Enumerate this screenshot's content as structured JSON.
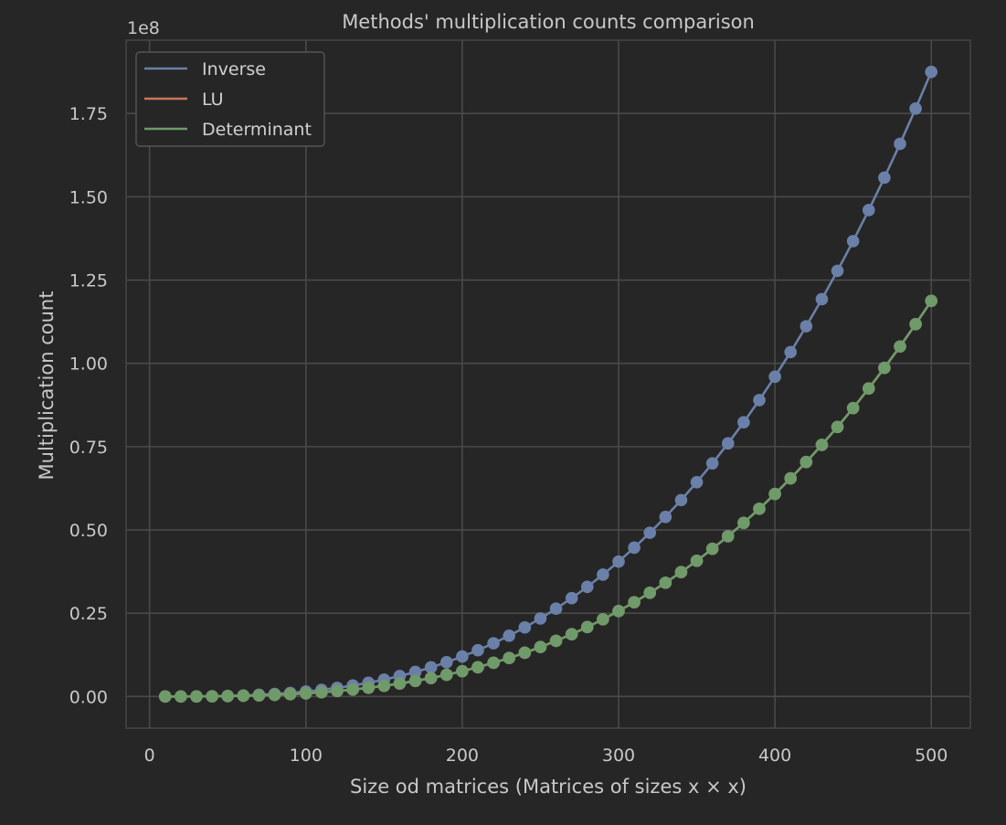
{
  "chart_data": {
    "type": "line",
    "title": "Methods' multiplication counts comparison",
    "xlabel": "Size od matrices (Matrices of sizes x × x)",
    "ylabel": "Multiplication count",
    "y_offset_label": "1e8",
    "y_scale_factor": 100000000,
    "xlim": [
      -15,
      525
    ],
    "ylim": [
      -9500000,
      197000000
    ],
    "x_ticks": [
      0,
      100,
      200,
      300,
      400,
      500
    ],
    "y_ticks": [
      0,
      25000000,
      50000000,
      75000000,
      100000000,
      125000000,
      150000000,
      175000000
    ],
    "y_tick_labels": [
      "0.00",
      "0.25",
      "0.50",
      "0.75",
      "1.00",
      "1.25",
      "1.50",
      "1.75"
    ],
    "grid": true,
    "legend_position": "top-left",
    "x": [
      10,
      20,
      30,
      40,
      50,
      60,
      70,
      80,
      90,
      100,
      110,
      120,
      130,
      140,
      150,
      160,
      170,
      180,
      190,
      200,
      210,
      220,
      230,
      240,
      250,
      260,
      270,
      280,
      290,
      300,
      310,
      320,
      330,
      340,
      350,
      360,
      370,
      380,
      390,
      400,
      410,
      420,
      430,
      440,
      450,
      460,
      470,
      480,
      490,
      500
    ],
    "series": [
      {
        "name": "Inverse",
        "color": "#6a80a8",
        "marker_color": "#6a80a8",
        "values": [
          1500,
          12000,
          40500,
          96000,
          187500,
          324000,
          514500,
          768000,
          1093500,
          1500000,
          1996500,
          2592000,
          3295500,
          4116000,
          5062500,
          6144000,
          7369500,
          8748000,
          10288500,
          12000000,
          13891500,
          15972000,
          18250500,
          20736000,
          23437500,
          26364000,
          29524500,
          32928000,
          36583500,
          40500000,
          44686500,
          49152000,
          53905500,
          58956000,
          64312500,
          69984000,
          75979500,
          82308000,
          88978500,
          96000000,
          103381500,
          111132000,
          119260500,
          127776000,
          136687500,
          146004000,
          155734500,
          165888000,
          176473500,
          187500000
        ]
      },
      {
        "name": "LU",
        "color": "#c8775a",
        "marker_color": "#c8775a",
        "values": [
          950,
          7600,
          25650,
          60800,
          118750,
          205200,
          325850,
          486400,
          692550,
          950000,
          1264450,
          1641600,
          2087150,
          2606800,
          3206250,
          3891200,
          4667350,
          5540400,
          6516050,
          7600000,
          8797950,
          10115600,
          11558650,
          13132800,
          14843750,
          16697200,
          18698850,
          20854400,
          23169550,
          25650000,
          28301450,
          31129600,
          34140150,
          37338800,
          40731250,
          44323200,
          48120350,
          52128400,
          56353050,
          60800000,
          65474950,
          70383600,
          75531650,
          80924800,
          86568750,
          92469200,
          98631850,
          105062400,
          111766550,
          118750000
        ]
      },
      {
        "name": "Determinant",
        "color": "#6f9a6a",
        "marker_color": "#6f9a6a",
        "values": [
          950,
          7600,
          25650,
          60800,
          118750,
          205200,
          325850,
          486400,
          692550,
          950000,
          1264450,
          1641600,
          2087150,
          2606800,
          3206250,
          3891200,
          4667350,
          5540400,
          6516050,
          7600000,
          8797950,
          10115600,
          11558650,
          13132800,
          14843750,
          16697200,
          18698850,
          20854400,
          23169550,
          25650000,
          28301450,
          31129600,
          34140150,
          37338800,
          40731250,
          44323200,
          48120350,
          52128400,
          56353050,
          60800000,
          65474950,
          70383600,
          75531650,
          80924800,
          86568750,
          92469200,
          98631850,
          105062400,
          111766550,
          118750000
        ]
      }
    ]
  }
}
